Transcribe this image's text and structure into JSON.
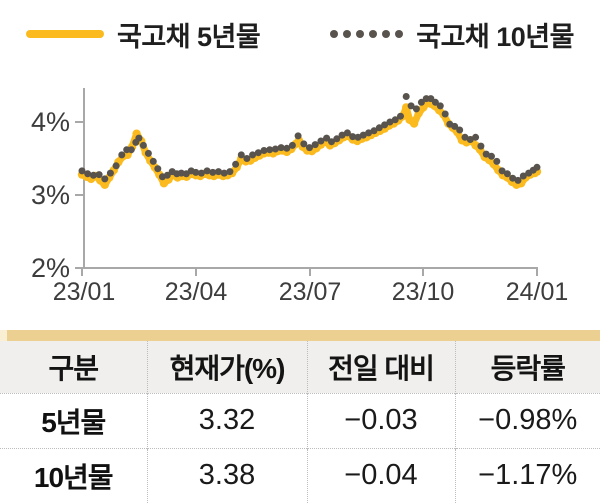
{
  "legend": {
    "series5_label": "국고채 5년물",
    "series10_label": "국고채 10년물"
  },
  "colors": {
    "line5": "#fbbb1f",
    "dots10": "#58534d",
    "axis": "#a8a8a8",
    "tick_text": "#3d3d3d",
    "accent_bar": "#ecd092",
    "header_bg": "#f0efed"
  },
  "chart_data": {
    "type": "line",
    "title": "",
    "xlabel": "",
    "ylabel": "",
    "x_ticks": [
      "23/01",
      "23/04",
      "23/07",
      "23/10",
      "24/01"
    ],
    "y_ticks": [
      "4%",
      "3%",
      "2%"
    ],
    "ylim": [
      2,
      4.5
    ],
    "x_range_months": [
      0,
      12
    ],
    "grid": false,
    "legend_position": "top-center",
    "series": [
      {
        "name": "국고채 5년물",
        "style": "solid-line",
        "color": "#fbbb1f",
        "points": [
          [
            0.0,
            3.28
          ],
          [
            0.12,
            3.25
          ],
          [
            0.24,
            3.22
          ],
          [
            0.36,
            3.26
          ],
          [
            0.48,
            3.2
          ],
          [
            0.6,
            3.14
          ],
          [
            0.72,
            3.24
          ],
          [
            0.84,
            3.34
          ],
          [
            0.96,
            3.45
          ],
          [
            1.08,
            3.53
          ],
          [
            1.2,
            3.55
          ],
          [
            1.32,
            3.66
          ],
          [
            1.44,
            3.84
          ],
          [
            1.56,
            3.74
          ],
          [
            1.68,
            3.58
          ],
          [
            1.8,
            3.47
          ],
          [
            1.92,
            3.38
          ],
          [
            2.04,
            3.28
          ],
          [
            2.16,
            3.16
          ],
          [
            2.28,
            3.21
          ],
          [
            2.4,
            3.28
          ],
          [
            2.52,
            3.24
          ],
          [
            2.64,
            3.26
          ],
          [
            2.76,
            3.25
          ],
          [
            2.88,
            3.29
          ],
          [
            3.0,
            3.27
          ],
          [
            3.12,
            3.26
          ],
          [
            3.24,
            3.29
          ],
          [
            3.36,
            3.27
          ],
          [
            3.48,
            3.26
          ],
          [
            3.6,
            3.28
          ],
          [
            3.72,
            3.26
          ],
          [
            3.84,
            3.27
          ],
          [
            3.96,
            3.3
          ],
          [
            4.08,
            3.38
          ],
          [
            4.2,
            3.5
          ],
          [
            4.32,
            3.46
          ],
          [
            4.44,
            3.47
          ],
          [
            4.56,
            3.51
          ],
          [
            4.68,
            3.54
          ],
          [
            4.8,
            3.57
          ],
          [
            4.92,
            3.58
          ],
          [
            5.04,
            3.57
          ],
          [
            5.16,
            3.6
          ],
          [
            5.28,
            3.61
          ],
          [
            5.4,
            3.59
          ],
          [
            5.52,
            3.63
          ],
          [
            5.64,
            3.7
          ],
          [
            5.72,
            3.75
          ],
          [
            5.82,
            3.66
          ],
          [
            5.94,
            3.61
          ],
          [
            6.06,
            3.6
          ],
          [
            6.18,
            3.64
          ],
          [
            6.3,
            3.69
          ],
          [
            6.42,
            3.73
          ],
          [
            6.54,
            3.68
          ],
          [
            6.66,
            3.71
          ],
          [
            6.78,
            3.75
          ],
          [
            6.9,
            3.79
          ],
          [
            7.02,
            3.81
          ],
          [
            7.14,
            3.76
          ],
          [
            7.26,
            3.74
          ],
          [
            7.38,
            3.77
          ],
          [
            7.5,
            3.79
          ],
          [
            7.62,
            3.82
          ],
          [
            7.74,
            3.85
          ],
          [
            7.86,
            3.88
          ],
          [
            7.98,
            3.91
          ],
          [
            8.1,
            3.95
          ],
          [
            8.22,
            3.98
          ],
          [
            8.34,
            4.02
          ],
          [
            8.46,
            4.08
          ],
          [
            8.55,
            4.2
          ],
          [
            8.64,
            4.03
          ],
          [
            8.76,
            3.98
          ],
          [
            8.88,
            4.12
          ],
          [
            9.0,
            4.2
          ],
          [
            9.1,
            4.26
          ],
          [
            9.2,
            4.25
          ],
          [
            9.3,
            4.22
          ],
          [
            9.42,
            4.16
          ],
          [
            9.54,
            4.1
          ],
          [
            9.66,
            3.98
          ],
          [
            9.78,
            3.92
          ],
          [
            9.9,
            3.86
          ],
          [
            10.02,
            3.75
          ],
          [
            10.14,
            3.72
          ],
          [
            10.26,
            3.75
          ],
          [
            10.38,
            3.68
          ],
          [
            10.5,
            3.62
          ],
          [
            10.62,
            3.52
          ],
          [
            10.74,
            3.48
          ],
          [
            10.86,
            3.42
          ],
          [
            10.98,
            3.34
          ],
          [
            11.1,
            3.27
          ],
          [
            11.22,
            3.24
          ],
          [
            11.34,
            3.18
          ],
          [
            11.46,
            3.14
          ],
          [
            11.58,
            3.16
          ],
          [
            11.7,
            3.24
          ],
          [
            11.82,
            3.28
          ],
          [
            11.94,
            3.3
          ],
          [
            12.0,
            3.32
          ]
        ]
      },
      {
        "name": "국고채 10년물",
        "style": "dots",
        "color": "#58534d",
        "points": [
          [
            0.0,
            3.33
          ],
          [
            0.15,
            3.29
          ],
          [
            0.3,
            3.27
          ],
          [
            0.45,
            3.28
          ],
          [
            0.6,
            3.22
          ],
          [
            0.75,
            3.3
          ],
          [
            0.9,
            3.4
          ],
          [
            1.05,
            3.55
          ],
          [
            1.18,
            3.62
          ],
          [
            1.3,
            3.62
          ],
          [
            1.42,
            3.72
          ],
          [
            1.5,
            3.78
          ],
          [
            1.62,
            3.68
          ],
          [
            1.75,
            3.57
          ],
          [
            1.88,
            3.46
          ],
          [
            2.0,
            3.36
          ],
          [
            2.12,
            3.25
          ],
          [
            2.25,
            3.27
          ],
          [
            2.38,
            3.32
          ],
          [
            2.5,
            3.29
          ],
          [
            2.62,
            3.3
          ],
          [
            2.75,
            3.29
          ],
          [
            2.88,
            3.33
          ],
          [
            3.0,
            3.31
          ],
          [
            3.15,
            3.3
          ],
          [
            3.3,
            3.33
          ],
          [
            3.45,
            3.31
          ],
          [
            3.6,
            3.32
          ],
          [
            3.75,
            3.3
          ],
          [
            3.9,
            3.32
          ],
          [
            4.05,
            3.42
          ],
          [
            4.2,
            3.55
          ],
          [
            4.35,
            3.5
          ],
          [
            4.5,
            3.55
          ],
          [
            4.65,
            3.58
          ],
          [
            4.8,
            3.61
          ],
          [
            4.95,
            3.62
          ],
          [
            5.1,
            3.63
          ],
          [
            5.25,
            3.65
          ],
          [
            5.4,
            3.64
          ],
          [
            5.55,
            3.68
          ],
          [
            5.7,
            3.81
          ],
          [
            5.85,
            3.7
          ],
          [
            6.0,
            3.65
          ],
          [
            6.15,
            3.69
          ],
          [
            6.3,
            3.74
          ],
          [
            6.45,
            3.78
          ],
          [
            6.58,
            3.73
          ],
          [
            6.72,
            3.77
          ],
          [
            6.86,
            3.82
          ],
          [
            7.0,
            3.85
          ],
          [
            7.14,
            3.8
          ],
          [
            7.28,
            3.79
          ],
          [
            7.42,
            3.82
          ],
          [
            7.56,
            3.85
          ],
          [
            7.7,
            3.88
          ],
          [
            7.84,
            3.92
          ],
          [
            7.98,
            3.96
          ],
          [
            8.12,
            4.0
          ],
          [
            8.26,
            4.03
          ],
          [
            8.4,
            4.08
          ],
          [
            8.55,
            4.35
          ],
          [
            8.68,
            4.22
          ],
          [
            8.82,
            4.18
          ],
          [
            8.95,
            4.27
          ],
          [
            9.08,
            4.32
          ],
          [
            9.2,
            4.32
          ],
          [
            9.32,
            4.27
          ],
          [
            9.45,
            4.22
          ],
          [
            9.58,
            4.11
          ],
          [
            9.7,
            3.97
          ],
          [
            9.83,
            3.94
          ],
          [
            9.96,
            3.89
          ],
          [
            10.1,
            3.79
          ],
          [
            10.24,
            3.76
          ],
          [
            10.38,
            3.79
          ],
          [
            10.52,
            3.67
          ],
          [
            10.66,
            3.56
          ],
          [
            10.8,
            3.53
          ],
          [
            10.94,
            3.46
          ],
          [
            11.08,
            3.33
          ],
          [
            11.22,
            3.29
          ],
          [
            11.36,
            3.23
          ],
          [
            11.5,
            3.2
          ],
          [
            11.64,
            3.26
          ],
          [
            11.78,
            3.3
          ],
          [
            11.9,
            3.34
          ],
          [
            12.0,
            3.38
          ]
        ]
      }
    ]
  },
  "table": {
    "headers": [
      "구분",
      "현재가(%)",
      "전일 대비",
      "등락률"
    ],
    "rows": [
      [
        "5년물",
        "3.32",
        "−0.03",
        "−0.98%"
      ],
      [
        "10년물",
        "3.38",
        "−0.04",
        "−1.17%"
      ]
    ]
  }
}
